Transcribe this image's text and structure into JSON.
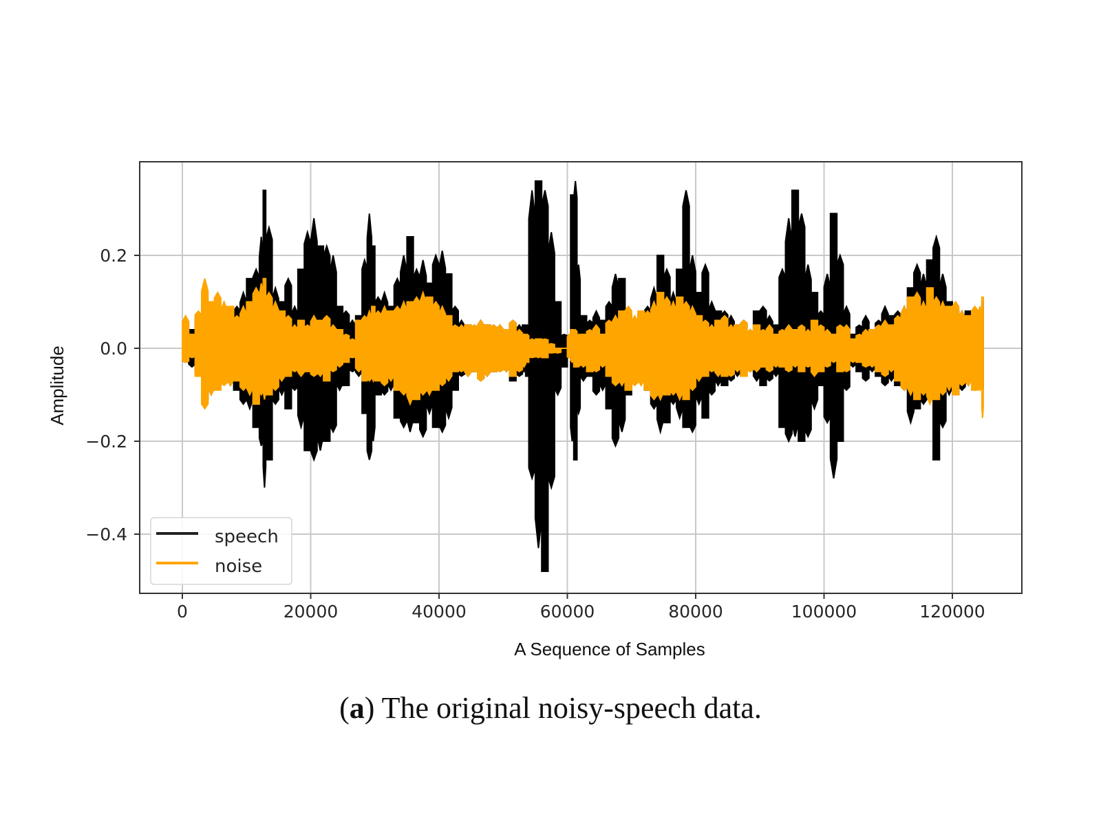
{
  "caption": {
    "label": "a",
    "text": "The original noisy-speech data."
  },
  "chart_data": {
    "type": "line",
    "title": "",
    "xlabel": "A Sequence of Samples",
    "ylabel": "Amplitude",
    "xlim": [
      -6500,
      128000
    ],
    "ylim": [
      -0.53,
      0.4
    ],
    "xticks": [
      0,
      20000,
      40000,
      60000,
      80000,
      100000,
      120000
    ],
    "xtick_labels": [
      "0",
      "20000",
      "40000",
      "60000",
      "80000",
      "100000",
      "120000"
    ],
    "yticks": [
      0.2,
      0.0,
      -0.2,
      -0.4
    ],
    "ytick_labels": [
      "0.2",
      "0.0",
      "−0.2",
      "−0.4"
    ],
    "grid": true,
    "legend_position": "lower left",
    "series": [
      {
        "name": "speech",
        "color": "#000000"
      },
      {
        "name": "noise",
        "color": "#FFA500"
      }
    ],
    "envelope_note": "Waveforms drawn as min/max amplitude envelopes per sample index",
    "envelope": {
      "x": [
        0,
        1000,
        2000,
        3000,
        4000,
        5000,
        6000,
        7000,
        8000,
        9000,
        10000,
        11000,
        12000,
        12600,
        13000,
        14000,
        15000,
        16000,
        17000,
        18000,
        19000,
        20000,
        21000,
        22000,
        23000,
        24000,
        25000,
        26000,
        27000,
        28000,
        28800,
        29500,
        30000,
        31000,
        32000,
        33000,
        34000,
        35000,
        36000,
        37000,
        38000,
        39000,
        40000,
        41000,
        42000,
        43000,
        44000,
        45000,
        46000,
        47000,
        48000,
        49000,
        50000,
        51000,
        52000,
        53000,
        53500,
        54000,
        55000,
        56000,
        57000,
        58000,
        59000,
        60000,
        60500,
        61000,
        61500,
        62000,
        63000,
        64000,
        65000,
        66000,
        67000,
        68000,
        69000,
        70000,
        71000,
        72000,
        73000,
        74000,
        75000,
        76000,
        77000,
        78000,
        79000,
        80000,
        81000,
        82000,
        83000,
        84000,
        85000,
        86000,
        87000,
        88000,
        89000,
        90000,
        91000,
        92000,
        93000,
        94000,
        95000,
        96000,
        97000,
        98000,
        99000,
        100000,
        101000,
        102000,
        103000,
        104000,
        105000,
        106000,
        107000,
        108000,
        109000,
        110000,
        111000,
        112000,
        113000,
        114000,
        115000,
        116000,
        117000,
        118000,
        119000,
        120000,
        121000,
        122000,
        123000,
        124000,
        124600
      ],
      "speech_max": [
        0.05,
        0.04,
        0.07,
        0.12,
        0.1,
        0.09,
        0.08,
        0.08,
        0.09,
        0.12,
        0.15,
        0.17,
        0.24,
        0.34,
        0.26,
        0.13,
        0.1,
        0.15,
        0.09,
        0.17,
        0.25,
        0.28,
        0.22,
        0.22,
        0.2,
        0.09,
        0.08,
        0.06,
        0.07,
        0.19,
        0.29,
        0.22,
        0.11,
        0.12,
        0.09,
        0.15,
        0.2,
        0.24,
        0.17,
        0.19,
        0.14,
        0.2,
        0.21,
        0.16,
        0.09,
        0.06,
        0.05,
        0.05,
        0.06,
        0.05,
        0.05,
        0.05,
        0.04,
        0.06,
        0.05,
        0.05,
        0.05,
        0.34,
        0.36,
        0.34,
        0.25,
        0.1,
        0.03,
        0.02,
        0.33,
        0.36,
        0.18,
        0.07,
        0.06,
        0.08,
        0.06,
        0.1,
        0.16,
        0.15,
        0.08,
        0.05,
        0.07,
        0.09,
        0.13,
        0.2,
        0.17,
        0.12,
        0.17,
        0.34,
        0.2,
        0.12,
        0.18,
        0.1,
        0.08,
        0.08,
        0.07,
        0.05,
        0.06,
        0.04,
        0.08,
        0.09,
        0.07,
        0.05,
        0.17,
        0.28,
        0.34,
        0.29,
        0.18,
        0.12,
        0.08,
        0.16,
        0.29,
        0.2,
        0.09,
        0.03,
        0.05,
        0.07,
        0.04,
        0.06,
        0.09,
        0.07,
        0.08,
        0.09,
        0.13,
        0.18,
        0.16,
        0.19,
        0.24,
        0.16,
        0.1,
        0.09,
        0.08,
        0.08,
        0.07,
        0.08,
        0.1
      ],
      "speech_min": [
        -0.03,
        -0.04,
        -0.05,
        -0.12,
        -0.1,
        -0.08,
        -0.07,
        -0.08,
        -0.09,
        -0.12,
        -0.13,
        -0.17,
        -0.21,
        -0.3,
        -0.24,
        -0.12,
        -0.1,
        -0.13,
        -0.09,
        -0.17,
        -0.22,
        -0.24,
        -0.22,
        -0.2,
        -0.18,
        -0.09,
        -0.08,
        -0.05,
        -0.06,
        -0.14,
        -0.24,
        -0.2,
        -0.1,
        -0.1,
        -0.09,
        -0.15,
        -0.17,
        -0.18,
        -0.16,
        -0.19,
        -0.14,
        -0.17,
        -0.18,
        -0.15,
        -0.09,
        -0.06,
        -0.06,
        -0.05,
        -0.07,
        -0.06,
        -0.05,
        -0.05,
        -0.05,
        -0.07,
        -0.06,
        -0.05,
        -0.06,
        -0.28,
        -0.43,
        -0.48,
        -0.3,
        -0.1,
        -0.04,
        -0.02,
        -0.2,
        -0.24,
        -0.14,
        -0.07,
        -0.06,
        -0.1,
        -0.09,
        -0.13,
        -0.21,
        -0.18,
        -0.1,
        -0.06,
        -0.07,
        -0.09,
        -0.13,
        -0.18,
        -0.16,
        -0.12,
        -0.15,
        -0.17,
        -0.18,
        -0.12,
        -0.15,
        -0.1,
        -0.08,
        -0.08,
        -0.07,
        -0.06,
        -0.06,
        -0.05,
        -0.07,
        -0.08,
        -0.07,
        -0.06,
        -0.17,
        -0.2,
        -0.19,
        -0.2,
        -0.19,
        -0.13,
        -0.08,
        -0.16,
        -0.28,
        -0.2,
        -0.09,
        -0.04,
        -0.05,
        -0.07,
        -0.05,
        -0.06,
        -0.08,
        -0.07,
        -0.08,
        -0.09,
        -0.16,
        -0.13,
        -0.12,
        -0.11,
        -0.24,
        -0.17,
        -0.1,
        -0.1,
        -0.09,
        -0.08,
        -0.08,
        -0.08,
        -0.1
      ],
      "noise_max": [
        0.07,
        0.03,
        0.08,
        0.15,
        0.1,
        0.12,
        0.1,
        0.09,
        0.07,
        0.09,
        0.1,
        0.13,
        0.14,
        0.15,
        0.12,
        0.1,
        0.08,
        0.07,
        0.05,
        0.06,
        0.05,
        0.07,
        0.06,
        0.07,
        0.05,
        0.04,
        0.03,
        0.02,
        0.06,
        0.07,
        0.08,
        0.09,
        0.08,
        0.09,
        0.08,
        0.09,
        0.1,
        0.1,
        0.11,
        0.12,
        0.11,
        0.1,
        0.09,
        0.07,
        0.05,
        0.05,
        0.05,
        0.05,
        0.06,
        0.05,
        0.05,
        0.05,
        0.04,
        0.06,
        0.04,
        0.03,
        0.03,
        0.02,
        0.02,
        0.02,
        0.01,
        0.0,
        0.0,
        0.03,
        0.04,
        0.04,
        0.03,
        0.03,
        0.04,
        0.05,
        0.03,
        0.06,
        0.07,
        0.08,
        0.09,
        0.07,
        0.08,
        0.08,
        0.1,
        0.12,
        0.11,
        0.1,
        0.11,
        0.1,
        0.09,
        0.07,
        0.06,
        0.05,
        0.06,
        0.07,
        0.05,
        0.05,
        0.06,
        0.04,
        0.05,
        0.04,
        0.05,
        0.03,
        0.04,
        0.05,
        0.04,
        0.05,
        0.04,
        0.06,
        0.05,
        0.04,
        0.03,
        0.05,
        0.05,
        0.02,
        0.03,
        0.04,
        0.04,
        0.05,
        0.06,
        0.05,
        0.07,
        0.09,
        0.11,
        0.12,
        0.1,
        0.13,
        0.11,
        0.1,
        0.09,
        0.1,
        0.08,
        0.07,
        0.09,
        0.09,
        0.11
      ],
      "noise_min": [
        -0.03,
        -0.02,
        -0.06,
        -0.13,
        -0.1,
        -0.09,
        -0.08,
        -0.08,
        -0.07,
        -0.09,
        -0.1,
        -0.12,
        -0.1,
        -0.11,
        -0.1,
        -0.09,
        -0.07,
        -0.06,
        -0.05,
        -0.06,
        -0.05,
        -0.06,
        -0.06,
        -0.07,
        -0.05,
        -0.04,
        -0.03,
        -0.02,
        -0.05,
        -0.07,
        -0.07,
        -0.07,
        -0.07,
        -0.08,
        -0.07,
        -0.09,
        -0.1,
        -0.12,
        -0.11,
        -0.1,
        -0.1,
        -0.09,
        -0.08,
        -0.07,
        -0.05,
        -0.05,
        -0.06,
        -0.05,
        -0.07,
        -0.06,
        -0.05,
        -0.05,
        -0.05,
        -0.06,
        -0.05,
        -0.04,
        -0.03,
        -0.02,
        -0.02,
        -0.02,
        -0.01,
        -0.01,
        -0.0,
        -0.02,
        -0.03,
        -0.04,
        -0.04,
        -0.04,
        -0.05,
        -0.05,
        -0.04,
        -0.06,
        -0.08,
        -0.08,
        -0.09,
        -0.08,
        -0.08,
        -0.09,
        -0.11,
        -0.11,
        -0.1,
        -0.1,
        -0.11,
        -0.11,
        -0.09,
        -0.07,
        -0.06,
        -0.05,
        -0.06,
        -0.06,
        -0.06,
        -0.05,
        -0.06,
        -0.05,
        -0.05,
        -0.04,
        -0.05,
        -0.04,
        -0.04,
        -0.05,
        -0.04,
        -0.05,
        -0.04,
        -0.06,
        -0.05,
        -0.04,
        -0.03,
        -0.05,
        -0.05,
        -0.03,
        -0.03,
        -0.04,
        -0.04,
        -0.05,
        -0.06,
        -0.05,
        -0.07,
        -0.09,
        -0.1,
        -0.11,
        -0.1,
        -0.12,
        -0.11,
        -0.1,
        -0.09,
        -0.1,
        -0.08,
        -0.08,
        -0.09,
        -0.09,
        -0.15
      ]
    }
  }
}
